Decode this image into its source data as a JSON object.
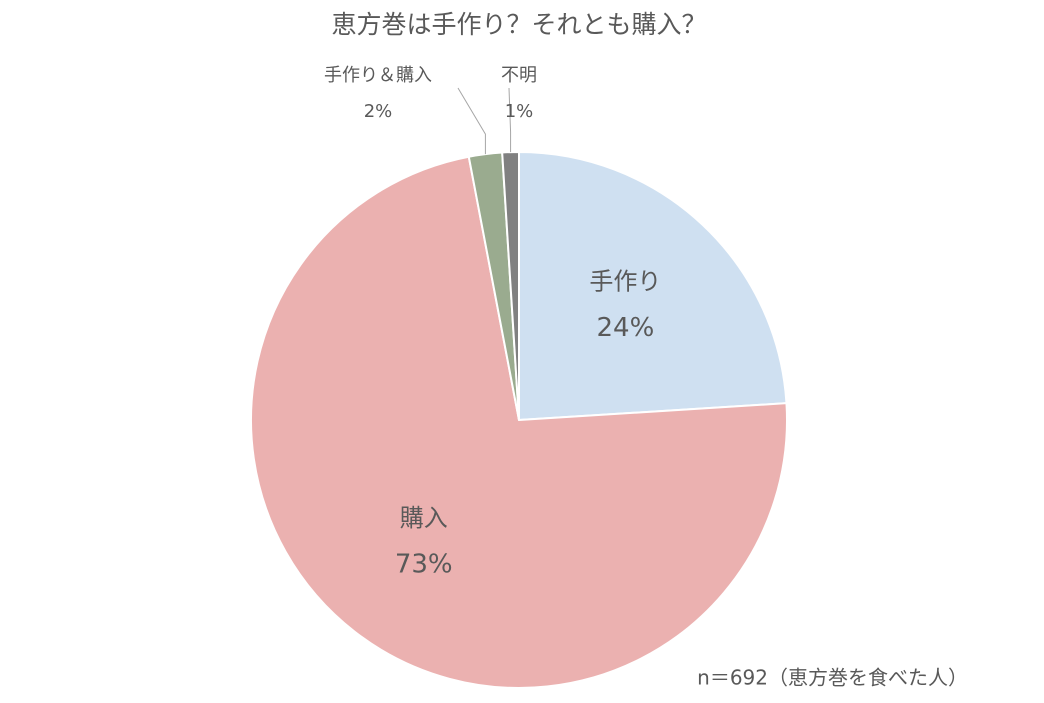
{
  "chart_data": {
    "type": "pie",
    "title": "恵方巻は手作り？それとも購入？",
    "categories": [
      "手作り",
      "購入",
      "手作り＆購入",
      "不明"
    ],
    "values": [
      24,
      73,
      2,
      1
    ],
    "value_labels": [
      "24%",
      "73%",
      "2%",
      "1%"
    ],
    "colors": [
      "#cfe0f1",
      "#ebb1b0",
      "#9aab8f",
      "#808080"
    ],
    "annotation": "n＝692（恵方巻を食べた人）"
  }
}
